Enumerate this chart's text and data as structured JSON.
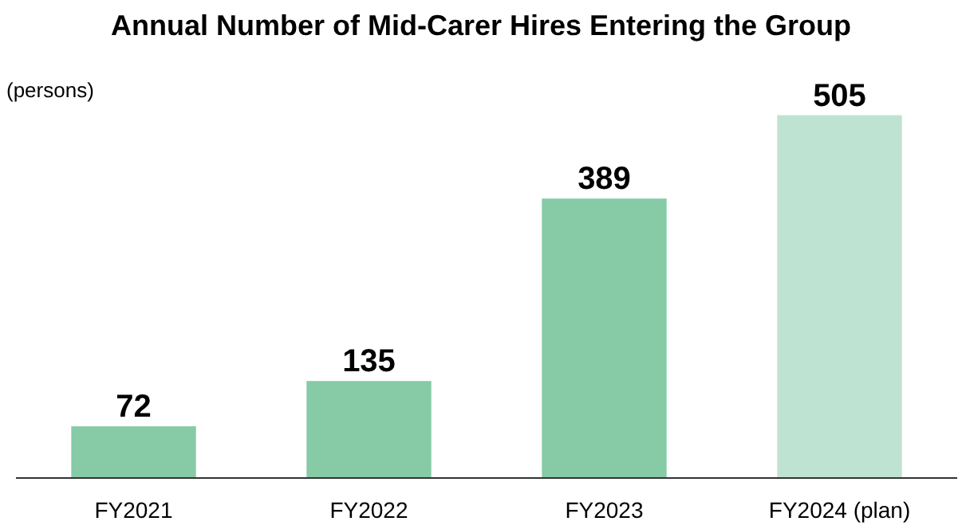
{
  "chart_data": {
    "type": "bar",
    "title": "Annual Number of Mid-Carer Hires Entering the Group",
    "ylabel": "(persons)",
    "categories": [
      "FY2021",
      "FY2022",
      "FY2023",
      "FY2024 (plan)"
    ],
    "values": [
      72,
      135,
      389,
      505
    ],
    "colors": [
      "#86caa6",
      "#86caa6",
      "#86caa6",
      "#bfe3d2"
    ],
    "data_labels": true
  }
}
